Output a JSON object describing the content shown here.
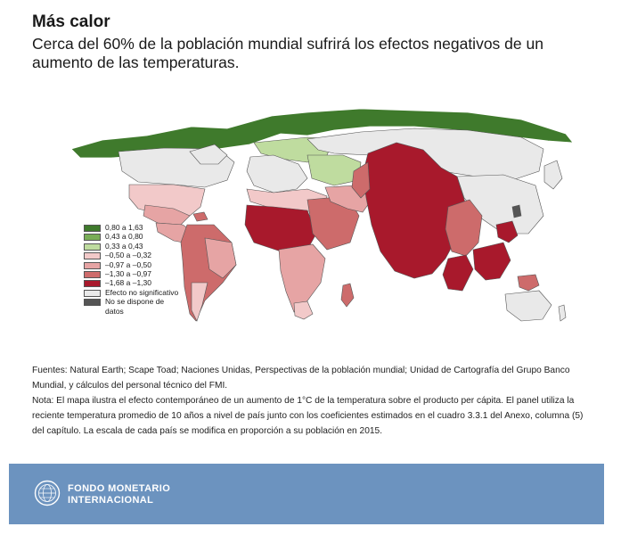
{
  "header": {
    "title": "Más calor",
    "subtitle": "Cerca del 60% de la población mundial sufrirá los efectos negativos de un aumento de las temperaturas."
  },
  "colors": {
    "green_dark": "#3f7a2c",
    "green_mid": "#79ad57",
    "green_light": "#bfdc9f",
    "pink_light": "#f2c9c9",
    "pink_mid": "#e6a4a4",
    "red_mid": "#cd6b6b",
    "red_dark": "#a8192c",
    "not_significant": "#e9e9e9",
    "no_data": "#555555",
    "footer_bg": "#6c93bf"
  },
  "legend": [
    {
      "label": "0,80 a 1,63",
      "color": "#3f7a2c"
    },
    {
      "label": "0,43 a 0,80",
      "color": "#79ad57"
    },
    {
      "label": "0,33 a 0,43",
      "color": "#bfdc9f"
    },
    {
      "label": "–0,50 a –0,32",
      "color": "#f2c9c9"
    },
    {
      "label": "–0,97 a –0,50",
      "color": "#e6a4a4"
    },
    {
      "label": "–1,30 a –0,97",
      "color": "#cd6b6b"
    },
    {
      "label": "–1,68 a –1,30",
      "color": "#a8192c"
    },
    {
      "label": "Efecto no significativo",
      "color": "#e9e9e9"
    },
    {
      "label": "No se dispone de\ndatos",
      "color": "#555555"
    }
  ],
  "notes": {
    "sources": "Fuentes: Natural Earth; Scape Toad; Naciones Unidas, Perspectivas de la población mundial; Unidad de Cartografía del Grupo Banco Mundial, y cálculos del personal técnico del FMI.",
    "note": "Nota: El mapa ilustra el efecto contemporáneo de un aumento de 1°C de la temperatura sobre el producto per cápita. El panel utiliza la reciente temperatura promedio de 10 años a nivel de país junto con los coeficientes estimados en el cuadro 3.3.1 del Anexo, columna (5) del capítulo. La escala de cada país se modifica en proporción a su población en 2015."
  },
  "footer": {
    "org_line1": "FONDO MONETARIO",
    "org_line2": "INTERNACIONAL"
  }
}
